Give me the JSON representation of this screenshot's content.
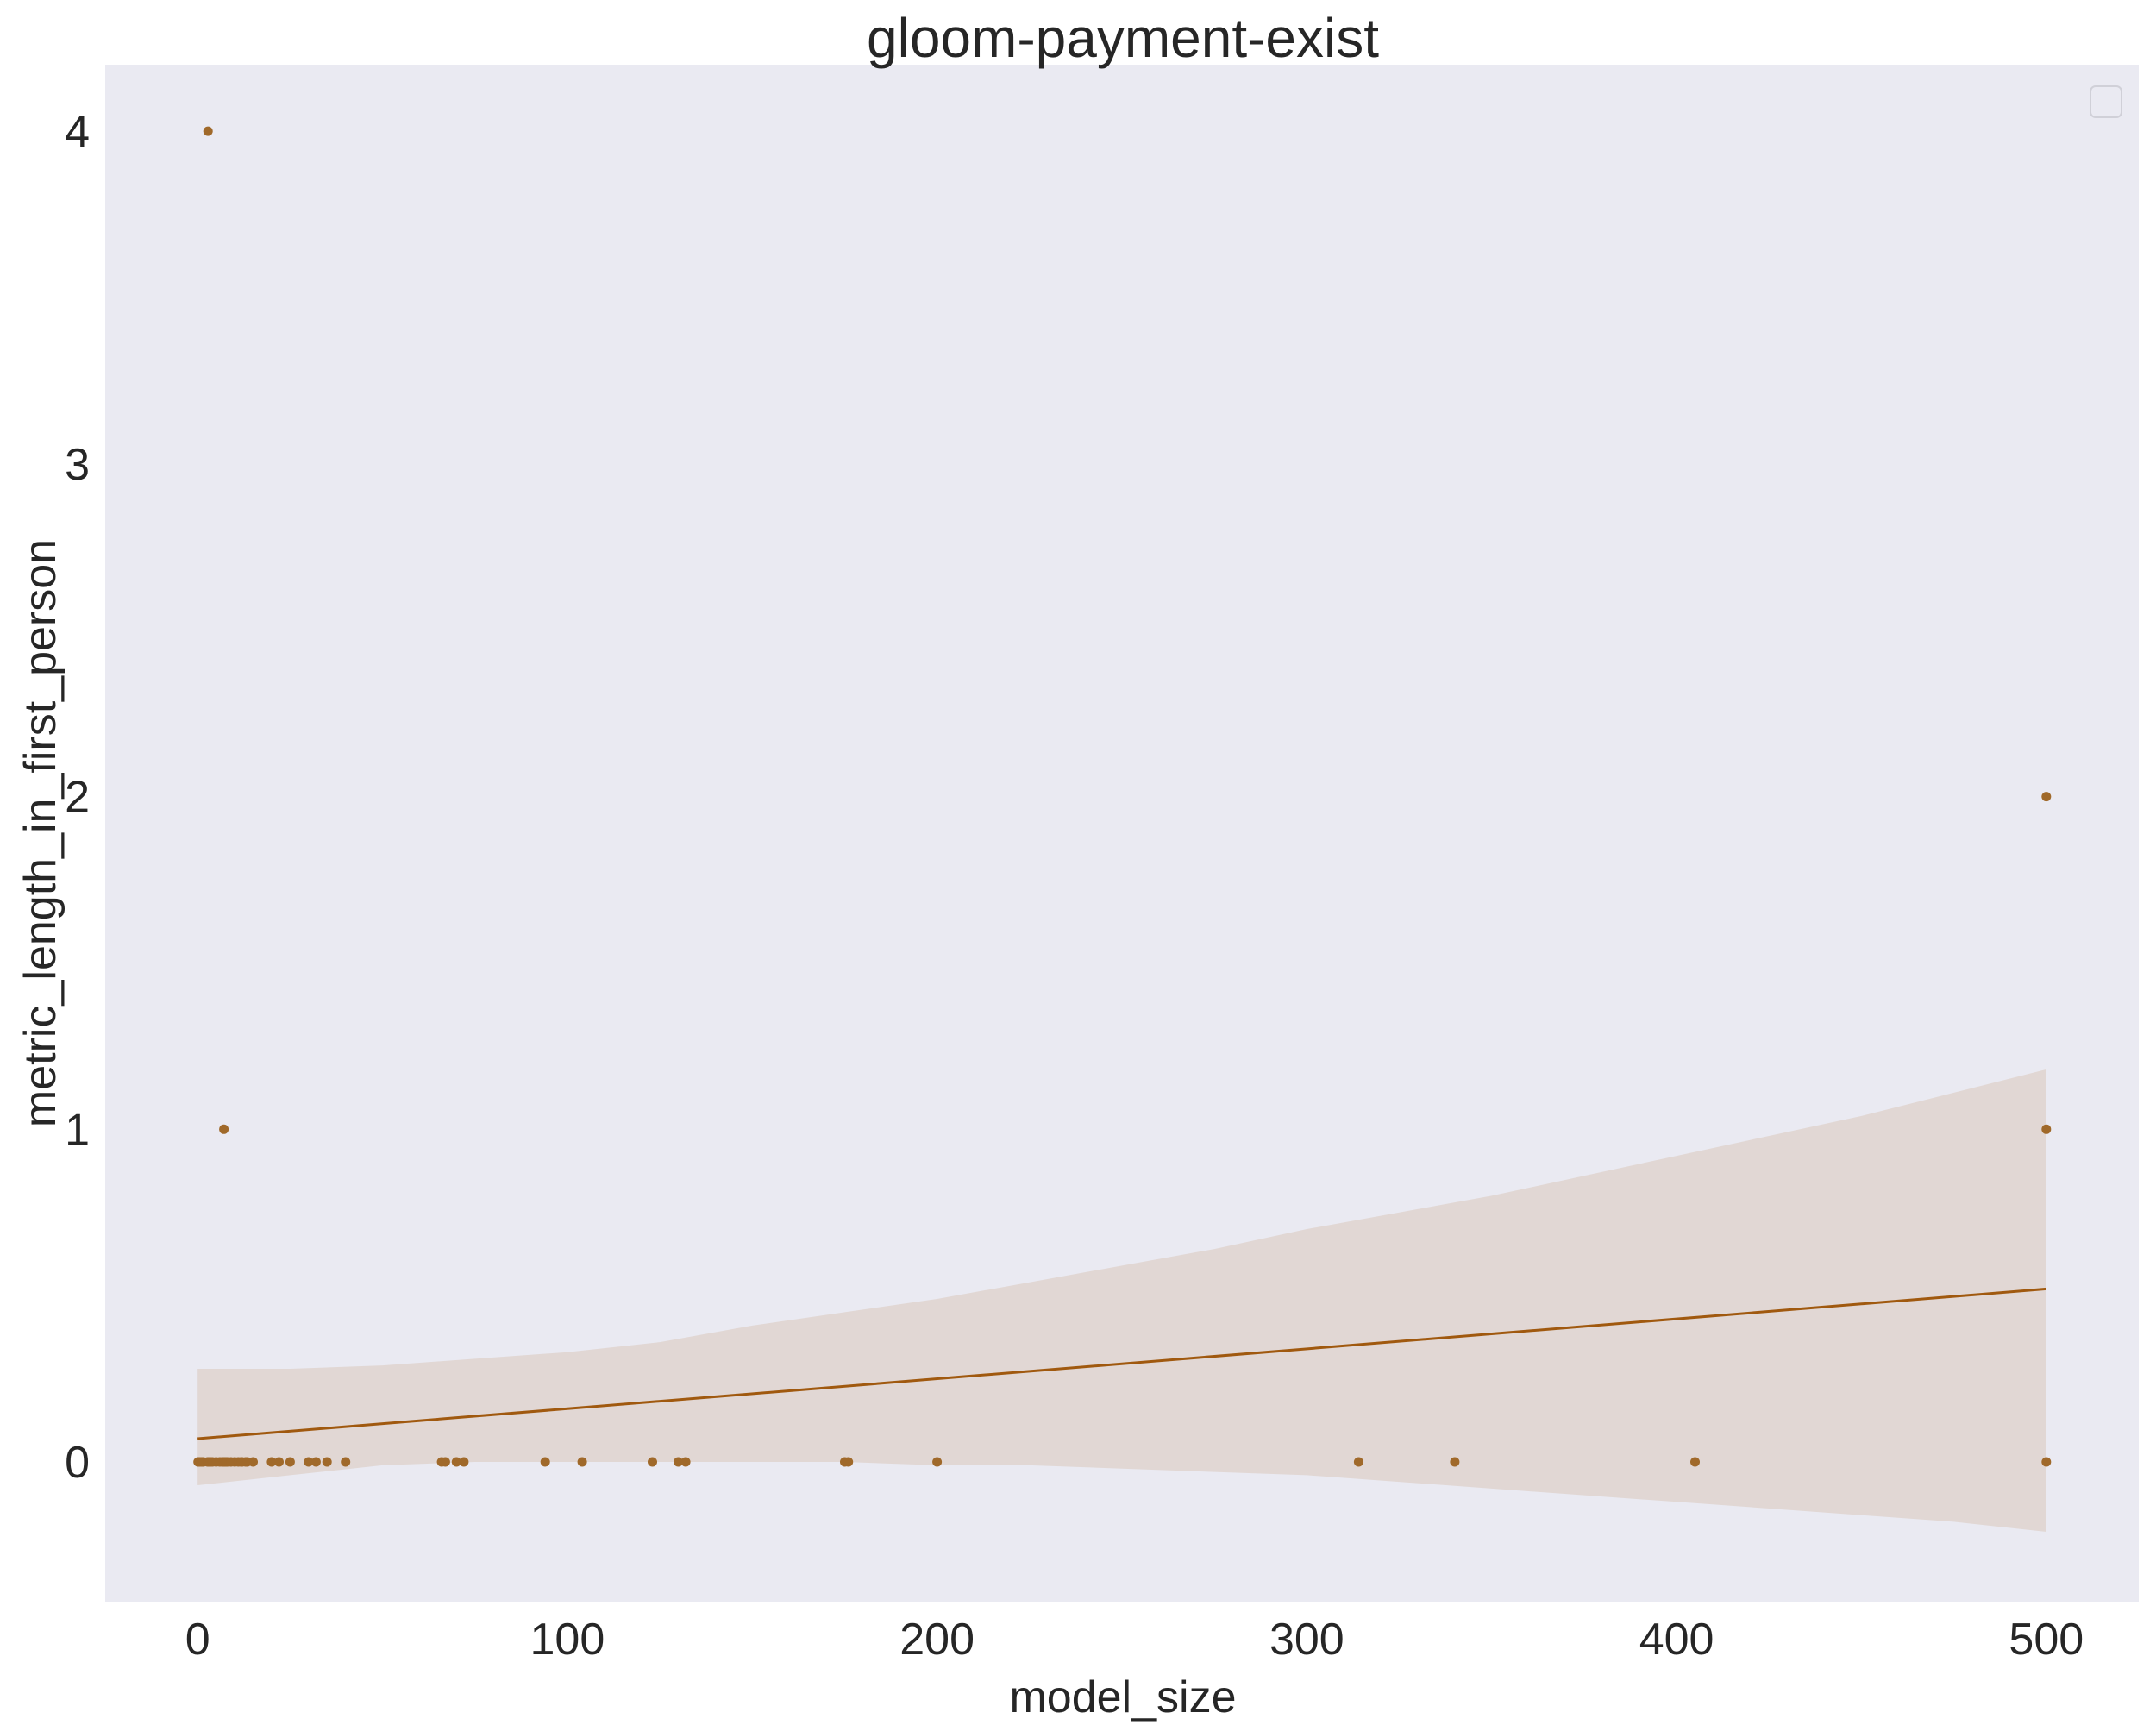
{
  "chart_data": {
    "type": "scatter",
    "title": "gloom-payment-exist",
    "xlabel": "model_size",
    "ylabel": "metric_length_in_first_person",
    "xlim": [
      -25,
      525
    ],
    "ylim": [
      -0.42,
      4.2
    ],
    "xticks": [
      0,
      100,
      200,
      300,
      400,
      500
    ],
    "xtick_labels": [
      "0",
      "100",
      "200",
      "300",
      "400",
      "500"
    ],
    "yticks": [
      0,
      1,
      2,
      3,
      4
    ],
    "ytick_labels": [
      "0",
      "1",
      "2",
      "3",
      "4"
    ],
    "grid": false,
    "legend": "top-right (empty)",
    "colors": {
      "background": "#eaeaf2",
      "points": "#a0692a",
      "line": "#a0590f",
      "band": "#e0d5d0"
    },
    "points": {
      "x": [
        0.125,
        0.35,
        0.56,
        1.1,
        1.3,
        1.5,
        2.7,
        2.8,
        3,
        3.5,
        4,
        5,
        6,
        6.7,
        7,
        7.1,
        7.2,
        7.5,
        7.8,
        8,
        9,
        10,
        11,
        11.8,
        12,
        13,
        13.4,
        15,
        20,
        22,
        25,
        30,
        32,
        35,
        40,
        66,
        67,
        70,
        72,
        94,
        104,
        123,
        130,
        132,
        175,
        176,
        200,
        314,
        340,
        405,
        500,
        500,
        500
      ],
      "y": [
        0,
        0,
        0,
        0,
        0,
        0,
        0,
        4,
        0,
        0,
        0,
        0,
        0,
        0,
        0,
        1,
        0,
        0,
        0,
        0,
        0,
        0,
        0,
        0,
        0,
        0,
        0,
        0,
        0,
        0,
        0,
        0,
        0,
        0,
        0,
        0,
        0,
        0,
        0,
        0,
        0,
        0,
        0,
        0,
        0,
        0,
        0,
        0,
        0,
        0,
        0,
        1,
        2
      ]
    },
    "regression": {
      "x": [
        0,
        500
      ],
      "y": [
        0.07,
        0.52
      ]
    },
    "confidence_band": {
      "x": [
        0,
        25,
        50,
        75,
        100,
        125,
        150,
        175,
        200,
        225,
        250,
        275,
        300,
        325,
        350,
        375,
        400,
        425,
        450,
        475,
        500
      ],
      "lower": [
        -0.07,
        -0.04,
        -0.01,
        0.0,
        0.0,
        0.0,
        0.0,
        0.0,
        -0.01,
        -0.01,
        -0.02,
        -0.03,
        -0.04,
        -0.06,
        -0.08,
        -0.1,
        -0.12,
        -0.14,
        -0.16,
        -0.18,
        -0.21
      ],
      "upper": [
        0.28,
        0.28,
        0.29,
        0.31,
        0.33,
        0.36,
        0.41,
        0.45,
        0.49,
        0.54,
        0.59,
        0.64,
        0.7,
        0.75,
        0.8,
        0.86,
        0.92,
        0.98,
        1.04,
        1.11,
        1.18
      ]
    }
  }
}
